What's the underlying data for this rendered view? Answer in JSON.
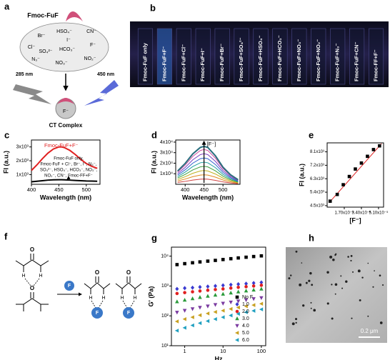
{
  "panels": {
    "a": {
      "label": "a",
      "molecule": "Fmoc-FuF",
      "anions": [
        "Br⁻",
        "HSO₄⁻",
        "CN⁻",
        "I⁻",
        "Cl⁻",
        "SO₄²⁻",
        "HCO₃⁻",
        "F⁻",
        "N₃⁻",
        "NO₂⁻",
        "NO₃⁻"
      ],
      "excitation": "285 nm",
      "emission": "450 nm",
      "complex_ion": "F⁻",
      "complex": "CT Complex"
    },
    "b": {
      "label": "b",
      "vials": [
        "Fmoc-FuF only",
        "Fmoc-FuF+F⁻",
        "Fmoc-FuF+Cl⁻",
        "Fmoc-FuF+I⁻",
        "Fmoc-FuF+Br⁻",
        "Fmoc-FuF+SO₄²⁻",
        "Fmoc-FuF+HSO₄⁻",
        "Fmoc-FuF+HCO₃⁻",
        "Fmoc-FuF+NO₃⁻",
        "Fmoc-FuF+NO₂⁻",
        "Fmoc-FuF+N₃⁻",
        "Fmoc-FuF+CN⁻",
        "Fmoc-FF+F⁻"
      ]
    },
    "f": {
      "label": "f",
      "oxygen": "O",
      "hydrogen": "H",
      "fluoride": "F"
    },
    "h": {
      "label": "h",
      "scale_bar": "0.2 μm"
    }
  },
  "chart_data": [
    {
      "type": "line",
      "label": "c",
      "xlabel": "Wavelength (nm)",
      "ylabel": "FI (a.u.)",
      "legend": "top-left",
      "x": [
        400,
        410,
        420,
        430,
        440,
        450,
        455,
        460,
        470,
        480,
        490,
        500,
        510,
        520
      ],
      "series": [
        {
          "name": "Fmoc-FuF+F⁻",
          "color": "#e02020",
          "values": [
            1300,
            1700,
            2150,
            2550,
            2850,
            3000,
            3000,
            2950,
            2750,
            2450,
            2100,
            1800,
            1600,
            1450
          ]
        },
        {
          "color": "#000000",
          "values": [
            480,
            520,
            560,
            600,
            620,
            630,
            630,
            620,
            600,
            580,
            560,
            540,
            530,
            520
          ]
        }
      ],
      "annotation": [
        "Fmoc-FuF only,",
        "Fmoc-FuF + Cl⁻, Br⁻, I⁻, N₃⁻,",
        "SO₄²⁻, HSO₄⁻, HCO₃⁻, NO₃⁻,",
        "NO₂⁻, CN⁻, Fmoc-FF+F⁻"
      ],
      "xlim": [
        400,
        525
      ],
      "ylim": [
        300,
        3500
      ],
      "xticks": [
        400,
        450,
        500
      ],
      "yticks": [
        {
          "value": 1000,
          "label": "1x10³"
        },
        {
          "value": 2000,
          "label": "2x10³"
        },
        {
          "value": 3000,
          "label": "3x10³"
        }
      ]
    },
    {
      "type": "line",
      "label": "d",
      "xlabel": "Wavelength (nm)",
      "ylabel": "FI (a.u.)",
      "annotation": "[F⁻]",
      "x": [
        380,
        400,
        420,
        440,
        450,
        460,
        480,
        500,
        520,
        540
      ],
      "series": [
        {
          "color": "#d04040",
          "values": [
            1750,
            2750,
            4000,
            4850,
            5000,
            4850,
            3750,
            2250,
            1250,
            600
          ]
        },
        {
          "color": "#e08a20",
          "values": [
            3150,
            4950,
            7200,
            8730,
            9000,
            8730,
            6750,
            4050,
            2250,
            1080
          ]
        },
        {
          "color": "#c0b020",
          "values": [
            4550,
            7150,
            10400,
            12610,
            13000,
            12610,
            9750,
            5850,
            3250,
            1560
          ]
        },
        {
          "color": "#40a040",
          "values": [
            5950,
            9350,
            13600,
            16490,
            17000,
            16490,
            12750,
            7650,
            4250,
            2040
          ]
        },
        {
          "color": "#20a0a0",
          "values": [
            7350,
            11550,
            16800,
            20370,
            21000,
            20370,
            15750,
            9450,
            5250,
            2520
          ]
        },
        {
          "color": "#3060d0",
          "values": [
            8750,
            13750,
            20000,
            24250,
            25000,
            24250,
            18750,
            11250,
            6250,
            3000
          ]
        },
        {
          "color": "#8040c0",
          "values": [
            10150,
            15950,
            23200,
            28130,
            29000,
            28130,
            21750,
            13050,
            7250,
            3480
          ]
        },
        {
          "color": "#d050a0",
          "values": [
            11550,
            18150,
            26400,
            32010,
            33000,
            32010,
            24750,
            14850,
            8250,
            3960
          ]
        },
        {
          "color": "#2a6f7f",
          "values": [
            12600,
            19800,
            28800,
            34920,
            36000,
            34920,
            27000,
            16200,
            9000,
            4320
          ]
        }
      ],
      "xlim": [
        375,
        545
      ],
      "ylim": [
        0,
        42000
      ],
      "xticks": [
        400,
        450,
        500
      ],
      "yticks": [
        {
          "value": 10000,
          "label": "1x10⁴"
        },
        {
          "value": 20000,
          "label": "2x10⁴"
        },
        {
          "value": 30000,
          "label": "3x10⁴"
        },
        {
          "value": 40000,
          "label": "4x10⁴"
        }
      ]
    },
    {
      "type": "scatter",
      "label": "e",
      "xlabel": "[F⁻]",
      "ylabel": "FI (a.u.)",
      "x": [
        3e-06,
        1e-05,
        1.6e-05,
        2.2e-05,
        2.8e-05,
        3.4e-05,
        4e-05,
        4.6e-05,
        5.2e-05
      ],
      "series": [
        {
          "color": "#000000",
          "marker": "square",
          "values": [
            4800,
            5250,
            5900,
            6450,
            6950,
            7350,
            7800,
            8250,
            8500
          ]
        }
      ],
      "fit": {
        "color": "#e02020",
        "x": [
          2e-06,
          5.4e-05
        ],
        "y": [
          4700,
          8650
        ]
      },
      "xlim": [
        0,
        5.6e-05
      ],
      "ylim": [
        4400,
        8700
      ],
      "xticks": [
        {
          "value": 1.7e-05,
          "label": "1.70x10⁻⁵"
        },
        {
          "value": 3.4e-05,
          "label": "3.40x10⁻⁵"
        },
        {
          "value": 5.1e-05,
          "label": "5.10x10⁻⁵"
        }
      ],
      "yticks": [
        {
          "value": 4500,
          "label": "4.5x10³"
        },
        {
          "value": 5400,
          "label": "5.4x10³"
        },
        {
          "value": 6300,
          "label": "6.3x10³"
        },
        {
          "value": 7200,
          "label": "7.2x10³"
        },
        {
          "value": 8100,
          "label": "8.1x10³"
        }
      ]
    },
    {
      "type": "scatter",
      "label": "g",
      "xlabel": "Hz",
      "ylabel": "G' (Pa)",
      "xlog": true,
      "ylog": true,
      "legend": "bottom-right",
      "x": [
        0.63,
        1,
        1.6,
        2.5,
        4,
        6.3,
        10,
        16,
        25,
        40,
        63,
        100
      ],
      "series": [
        {
          "name": "No F",
          "color": "#000000",
          "marker": "square",
          "values": [
            5200,
            5600,
            6000,
            6400,
            6800,
            7200,
            7700,
            8200,
            8700,
            9200,
            9700,
            10200
          ]
        },
        {
          "name": "1.0",
          "color": "#3a3ad0",
          "marker": "diamond",
          "values": [
            800,
            850,
            880,
            920,
            960,
            1000,
            1050,
            1100,
            1150,
            1200,
            1260,
            1320
          ]
        },
        {
          "name": "2.0",
          "color": "#e02020",
          "marker": "circle",
          "values": [
            560,
            600,
            640,
            680,
            720,
            760,
            800,
            850,
            900,
            950,
            1000,
            1060
          ]
        },
        {
          "name": "3.0",
          "color": "#2a9a3a",
          "marker": "triangle-up",
          "values": [
            300,
            340,
            380,
            420,
            460,
            500,
            540,
            590,
            640,
            690,
            740,
            800
          ]
        },
        {
          "name": "4.0",
          "color": "#7a3aa0",
          "marker": "triangle-down",
          "values": [
            130,
            150,
            170,
            190,
            210,
            235,
            260,
            285,
            310,
            340,
            370,
            400
          ]
        },
        {
          "name": "5.0",
          "color": "#c8a020",
          "marker": "triangle-left",
          "values": [
            65,
            78,
            90,
            105,
            120,
            135,
            150,
            170,
            190,
            210,
            230,
            255
          ]
        },
        {
          "name": "6.0",
          "color": "#20a0c0",
          "marker": "triangle-left",
          "values": [
            32,
            40,
            48,
            57,
            67,
            78,
            90,
            103,
            117,
            132,
            148,
            165
          ]
        }
      ],
      "xlim": [
        0.45,
        130
      ],
      "ylim": [
        10,
        20000
      ],
      "xticks": [
        1,
        10,
        100
      ],
      "yticks": [
        {
          "value": 10,
          "label": "10¹"
        },
        {
          "value": 100,
          "label": "10²"
        },
        {
          "value": 1000,
          "label": "10³"
        },
        {
          "value": 10000,
          "label": "10⁴"
        }
      ]
    }
  ]
}
